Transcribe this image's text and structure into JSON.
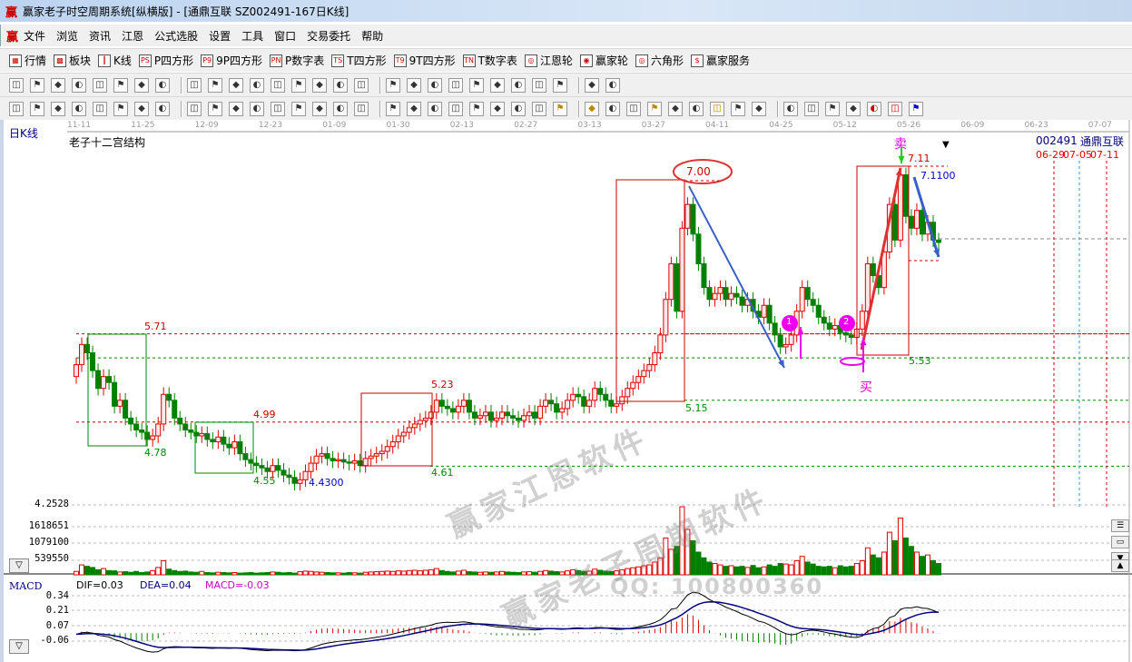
{
  "window": {
    "title": "赢家老子时空周期系统[纵横版] - [通鼎互联  SZ002491-167日K线]",
    "logo": "赢"
  },
  "menu": [
    "文件",
    "浏览",
    "资讯",
    "江恩",
    "公式选股",
    "设置",
    "工具",
    "窗口",
    "交易委托",
    "帮助"
  ],
  "toolbar1": [
    {
      "icon": "grid-icon",
      "glyph": "▦",
      "label": "行情"
    },
    {
      "icon": "blocks-icon",
      "glyph": "▩",
      "label": "板块"
    },
    {
      "icon": "candles-icon",
      "glyph": "┃",
      "label": "K线"
    },
    {
      "icon": "ps-icon",
      "glyph": "PS",
      "label": "P四方形"
    },
    {
      "icon": "p9-icon",
      "glyph": "P9",
      "label": "9P四方形"
    },
    {
      "icon": "pn-icon",
      "glyph": "PN",
      "label": "P数字表"
    },
    {
      "icon": "ts-icon",
      "glyph": "TS",
      "label": "T四方形"
    },
    {
      "icon": "t9-icon",
      "glyph": "T9",
      "label": "9T四方形"
    },
    {
      "icon": "tn-icon",
      "glyph": "TN",
      "label": "T数字表"
    },
    {
      "icon": "gann-wheel-icon",
      "glyph": "◎",
      "label": "江恩轮"
    },
    {
      "icon": "winner-wheel-icon",
      "glyph": "◉",
      "label": "赢家轮"
    },
    {
      "icon": "hexagon-icon",
      "glyph": "◎",
      "label": "六角形"
    },
    {
      "icon": "dollar-icon",
      "glyph": "$",
      "label": "赢家服务"
    }
  ],
  "toolbar2": [
    "period-icon",
    "zoom-icon",
    "note-icon",
    "chart-icon",
    "chart2-icon",
    "cursor-icon",
    "draw-icon",
    "flag-icon",
    "first-icon",
    "last-icon",
    "prev-icon",
    "next-icon",
    "diamond1-icon",
    "diamond2-icon",
    "diamond3-icon",
    "diamond4-icon",
    "diamond5-icon",
    "hand-icon",
    "crosshair-icon",
    "wave-icon",
    "pattern-icon",
    "cycle-icon",
    "calendar-icon",
    "calculator-icon",
    "list-icon",
    "save-icon",
    "export-icon",
    "print-icon"
  ],
  "toolbar3": [
    "pencil-icon",
    "hlines-icon",
    "vline-icon",
    "comb-icon",
    "comb2-icon",
    "comb3-icon",
    "fan-icon",
    "circle-icon",
    "grid2-icon",
    "cross-icon",
    "angle-icon",
    "spiral-icon",
    "star-icon",
    "square-icon",
    "bars-icon",
    "bars2-icon",
    "bars3-icon",
    "bars4-icon",
    "grid3-icon",
    "grid4-icon",
    "diag-icon",
    "levels-icon",
    "percent-fib-icon",
    "percent-icon",
    "percent-lines-icon",
    "gold-icon",
    "gold-lines-icon",
    "arrow-fan-icon",
    "wave2-icon",
    "gold2-icon",
    "j-angle-icon",
    "f-angle-icon",
    "gold-angle-icon",
    "angle2-icon",
    "angle3-icon",
    "angle4-icon",
    "table-icon",
    "axes-icon",
    "taiji-icon",
    "yinyang-icon",
    "updown-icon",
    "infinity-icon"
  ],
  "chart": {
    "period_label": "日K线",
    "indicator_title": "老子十二宫结构",
    "dates": [
      "11-11",
      "11-25",
      "12-09",
      "12-23",
      "01-09",
      "01-30",
      "02-13",
      "02-27",
      "03-13",
      "03-27",
      "04-11",
      "04-25",
      "05-12",
      "05-26",
      "06-09",
      "06-23",
      "07-07"
    ],
    "stock_code": "002491",
    "stock_name": "通鼎互联",
    "future_dates": [
      "06-29",
      "07-05",
      "07-11"
    ],
    "annotations": {
      "l571": "5.71",
      "l478": "4.78",
      "l499": "4.99",
      "l455": "4.55",
      "l443": "4.4300",
      "l523": "5.23",
      "l461": "4.61",
      "l700": "7.00",
      "l515": "5.15",
      "sell": "卖",
      "l711": "7.11",
      "l7110": "7.1100",
      "l553": "5.53",
      "buy": "买",
      "c1": "1",
      "c2": "2"
    },
    "watermarks": [
      "赢家江恩软件",
      "赢家老子周期软件",
      "QQ: 100800360"
    ],
    "colors": {
      "up": "#e00000",
      "down": "#008000",
      "dif": "#000000",
      "dea": "#000080",
      "accent": "#e000e0"
    }
  },
  "volume": {
    "scale": [
      "4.2528",
      "1618651",
      "1079100",
      "539550"
    ]
  },
  "macd": {
    "label": "MACD",
    "dif": "DIF=0.03",
    "dea": "DEA=0.04",
    "macd": "MACD=-0.03",
    "scale": [
      "0.34",
      "0.21",
      "0.07",
      "-0.06"
    ]
  },
  "chart_data": {
    "type": "candlestick",
    "closes": [
      5.45,
      5.62,
      5.55,
      5.4,
      5.25,
      5.35,
      5.3,
      5.1,
      5.15,
      5.0,
      4.95,
      4.9,
      4.88,
      4.82,
      4.85,
      4.95,
      5.2,
      5.15,
      5.0,
      4.95,
      4.9,
      4.88,
      4.85,
      4.87,
      4.82,
      4.8,
      4.84,
      4.78,
      4.75,
      4.8,
      4.7,
      4.65,
      4.62,
      4.6,
      4.58,
      4.55,
      4.6,
      4.56,
      4.52,
      4.5,
      4.45,
      4.48,
      4.55,
      4.62,
      4.68,
      4.7,
      4.66,
      4.64,
      4.65,
      4.63,
      4.62,
      4.64,
      4.6,
      4.66,
      4.68,
      4.7,
      4.72,
      4.76,
      4.8,
      4.85,
      4.88,
      4.92,
      4.95,
      4.98,
      5.0,
      5.05,
      5.15,
      5.1,
      5.08,
      5.05,
      5.1,
      5.15,
      5.05,
      5.0,
      5.02,
      5.05,
      4.98,
      5.0,
      5.05,
      5.02,
      5.0,
      4.98,
      5.02,
      5.05,
      5.0,
      5.1,
      5.15,
      5.12,
      5.05,
      5.08,
      5.15,
      5.2,
      5.18,
      5.1,
      5.15,
      5.25,
      5.2,
      5.15,
      5.1,
      5.12,
      5.18,
      5.25,
      5.3,
      5.35,
      5.4,
      5.45,
      5.55,
      5.7,
      6.0,
      6.3,
      5.9,
      6.6,
      6.8,
      6.55,
      6.3,
      6.1,
      6.0,
      6.05,
      6.1,
      6.0,
      6.05,
      6.02,
      5.95,
      6.0,
      5.9,
      5.85,
      5.95,
      5.8,
      5.7,
      5.6,
      5.62,
      5.7,
      5.9,
      6.1,
      6.0,
      5.95,
      5.85,
      5.8,
      5.75,
      5.78,
      5.72,
      5.7,
      5.68,
      5.75,
      5.9,
      6.3,
      6.2,
      6.1,
      6.4,
      6.8,
      6.5,
      7.05,
      6.7,
      6.6,
      6.75,
      6.55,
      6.65,
      6.5,
      6.48
    ],
    "volume": [
      120000.0,
      350000.0,
      300000.0,
      260000.0,
      180000.0,
      220000.0,
      150000.0,
      140000.0,
      100000.0,
      110000.0,
      90000.0,
      120000.0,
      80000.0,
      100000.0,
      150000.0,
      260000.0,
      500000.0,
      200000.0,
      150000.0,
      120000.0,
      130000.0,
      100000.0,
      90000.0,
      120000.0,
      80000.0,
      70000.0,
      90000.0,
      80000.0,
      70000.0,
      80000.0,
      60000.0,
      70000.0,
      80000.0,
      60000.0,
      70000.0,
      80000.0,
      100000.0,
      90000.0,
      70000.0,
      80000.0,
      60000.0,
      110000.0,
      130000.0,
      120000.0,
      100000.0,
      90000.0,
      80000.0,
      70000.0,
      70000.0,
      60000.0,
      80000.0,
      70000.0,
      60000.0,
      90000.0,
      100000.0,
      110000.0,
      120000.0,
      130000.0,
      120000.0,
      140000.0,
      130000.0,
      150000.0,
      160000.0,
      140000.0,
      160000.0,
      180000.0,
      220000.0,
      150000.0,
      120000.0,
      100000.0,
      130000.0,
      160000.0,
      110000.0,
      100000.0,
      90000.0,
      100000.0,
      90000.0,
      100000.0,
      120000.0,
      100000.0,
      90000.0,
      80000.0,
      100000.0,
      110000.0,
      90000.0,
      120000.0,
      150000.0,
      130000.0,
      110000.0,
      100000.0,
      140000.0,
      180000.0,
      150000.0,
      120000.0,
      130000.0,
      200000.0,
      160000.0,
      130000.0,
      120000.0,
      140000.0,
      180000.0,
      220000.0,
      250000.0,
      280000.0,
      320000.0,
      350000.0,
      450000.0,
      600000.0,
      1300000.0,
      900000.0,
      1000000.0,
      2400000.0,
      1600000.0,
      1200000.0,
      800000.0,
      600000.0,
      450000.0,
      400000.0,
      350000.0,
      300000.0,
      320000.0,
      280000.0,
      300000.0,
      260000.0,
      330000.0,
      250000.0,
      280000.0,
      350000.0,
      300000.0,
      400000.0,
      380000.0,
      350000.0,
      500000.0,
      650000.0,
      450000.0,
      380000.0,
      300000.0,
      280000.0,
      300000.0,
      250000.0,
      320000.0,
      280000.0,
      300000.0,
      400000.0,
      500000.0,
      950000.0,
      700000.0,
      600000.0,
      800000.0,
      1500000.0,
      1200000.0,
      2000000.0,
      1300000.0,
      1000000.0,
      800000.0,
      650000.0,
      700000.0,
      500000.0,
      400000.0
    ],
    "price_levels": [
      5.71,
      4.99,
      5.53,
      5.15,
      4.61
    ],
    "ylim": [
      4.2528,
      7.11
    ]
  }
}
